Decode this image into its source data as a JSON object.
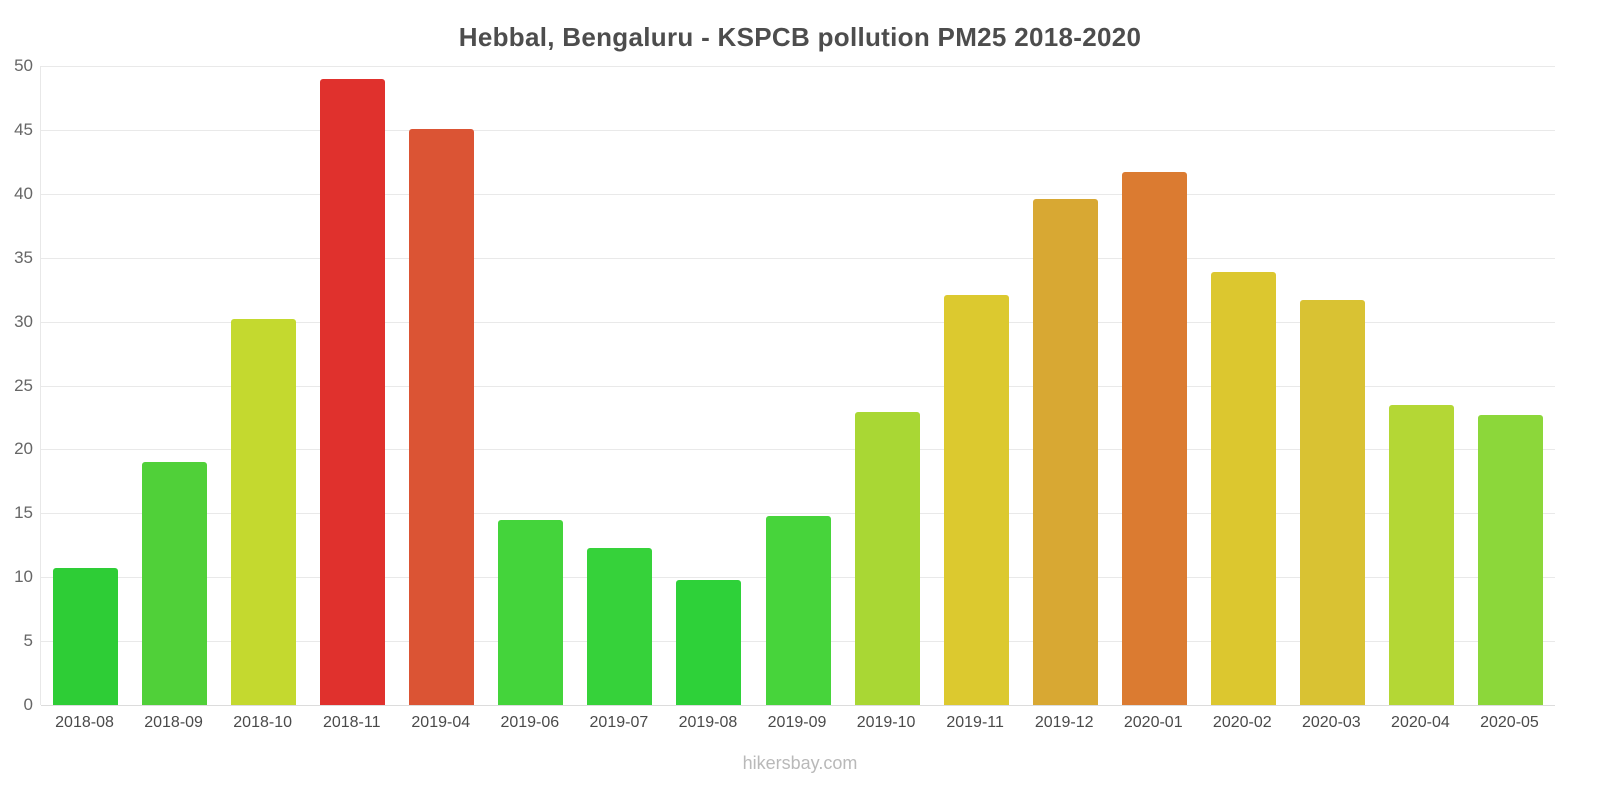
{
  "page": {
    "footer": "hikersbay.com"
  },
  "chart_data": {
    "type": "bar",
    "title": "Hebbal, Bengaluru - KSPCB pollution PM25 2018-2020",
    "xlabel": "",
    "ylabel": "",
    "categories": [
      "2018-08",
      "2018-09",
      "2018-10",
      "2018-11",
      "2019-04",
      "2019-06",
      "2019-07",
      "2019-08",
      "2019-09",
      "2019-10",
      "2019-11",
      "2019-12",
      "2020-01",
      "2020-02",
      "2020-03",
      "2020-04",
      "2020-05"
    ],
    "values": [
      10.7,
      19.0,
      30.2,
      49.0,
      45.1,
      14.5,
      12.3,
      9.8,
      14.8,
      22.9,
      32.1,
      39.6,
      41.7,
      33.9,
      31.7,
      23.5,
      22.7
    ],
    "bar_colors": [
      "#2ECD36",
      "#50D039",
      "#C4D92F",
      "#E0312D",
      "#DB5434",
      "#44D43B",
      "#36D23A",
      "#2ED139",
      "#47D43B",
      "#A9D734",
      "#DCC92F",
      "#D8A833",
      "#DB7B31",
      "#DCC72F",
      "#D9C233",
      "#B4D735",
      "#8CD73A"
    ],
    "ylim": [
      0,
      50
    ],
    "yticks": [
      0,
      5,
      10,
      15,
      20,
      25,
      30,
      35,
      40,
      45,
      50
    ],
    "grid": "horizontal",
    "legend": "none"
  }
}
